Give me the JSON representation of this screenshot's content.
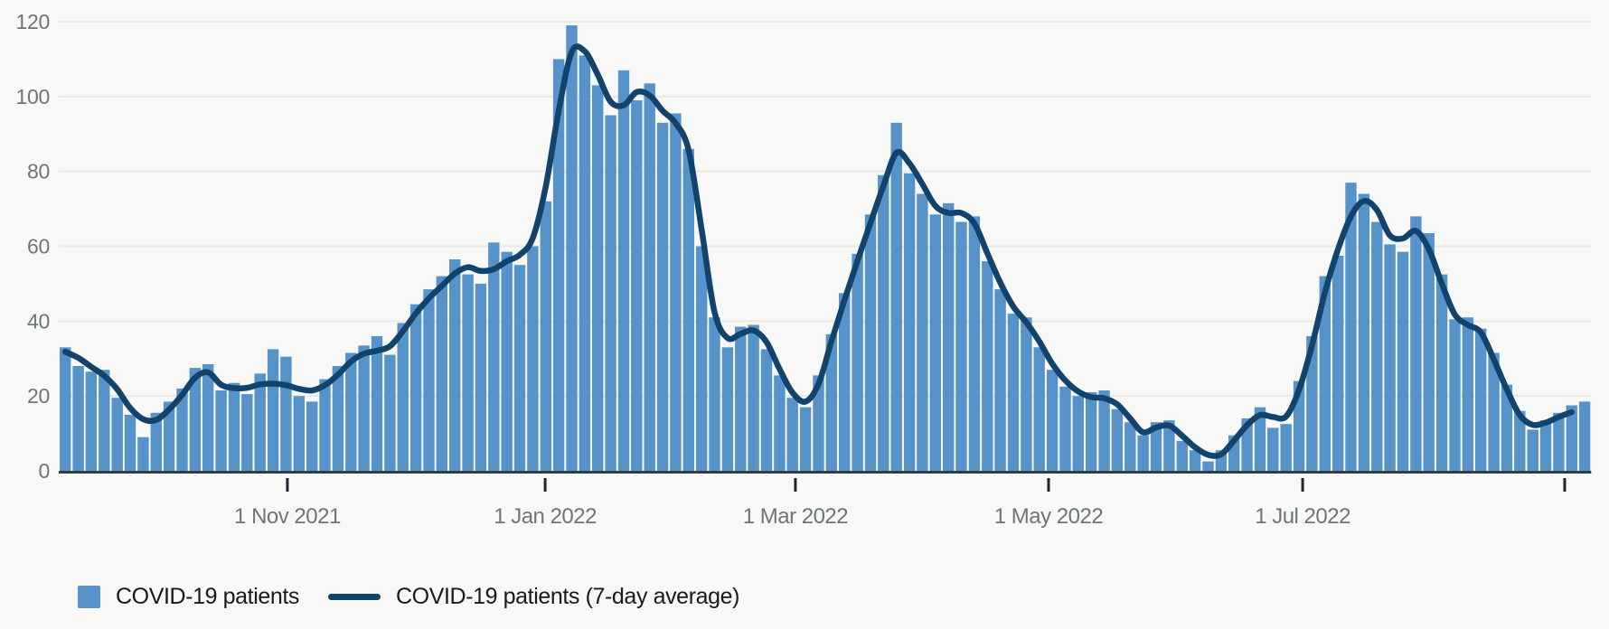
{
  "page": {
    "background": "#f8f8f7"
  },
  "chart_data": {
    "type": "bar",
    "title": "",
    "xlabel": "",
    "ylabel": "",
    "ylim": [
      0,
      120
    ],
    "y_ticks": [
      0,
      20,
      40,
      60,
      80,
      100,
      120
    ],
    "x_ticks": [
      {
        "f": 0.1492,
        "label": "1 Nov 2021"
      },
      {
        "f": 0.3174,
        "label": "1 Jan 2022"
      },
      {
        "f": 0.4807,
        "label": "1 Mar 2022"
      },
      {
        "f": 0.6459,
        "label": "1 May 2022"
      },
      {
        "f": 0.8117,
        "label": "1 Jul 2022"
      },
      {
        "f": 0.9827,
        "label": ""
      }
    ],
    "grid": true,
    "legend_position": "bottom-left",
    "colors": {
      "bar": "#5793C9",
      "line": "#12436D",
      "axis": "#343b41",
      "tick": "#21272c",
      "grid": "#e9e9e7",
      "label": "#6d7578",
      "background": "#f8f8f7",
      "legend_text": "#17191a"
    },
    "series": [
      {
        "name": "COVID-19 patients",
        "type": "bar",
        "color": "#5793C9",
        "values": [
          33,
          28,
          26.5,
          27,
          19.5,
          15,
          9,
          15.5,
          18.5,
          22,
          27.5,
          28.5,
          21.5,
          23.5,
          20.5,
          26,
          32.5,
          30.5,
          20,
          18.5,
          24.5,
          28,
          31.5,
          33.5,
          36,
          31,
          39.5,
          44.5,
          48.5,
          52,
          56.5,
          52.5,
          50,
          61,
          58.5,
          55,
          60,
          72,
          110,
          119,
          111,
          103,
          95,
          107,
          99,
          103.5,
          93,
          95.5,
          86,
          60,
          41,
          33,
          38.5,
          39,
          32.5,
          25.5,
          19.5,
          17,
          25.5,
          36.5,
          47.5,
          58,
          68.5,
          79,
          93,
          79.5,
          74,
          68.5,
          71.5,
          66.5,
          68,
          56,
          48.5,
          42,
          41,
          33,
          27,
          22.5,
          20,
          21,
          21.5,
          16.5,
          13,
          9.5,
          13,
          13.5,
          8,
          5.5,
          2.5,
          5.5,
          9.5,
          14,
          17,
          11.5,
          12.5,
          24,
          36,
          52,
          57.5,
          77,
          74,
          66.5,
          60.5,
          58.5,
          68,
          63.5,
          52.5,
          40.5,
          41,
          38,
          31.5,
          23,
          16,
          11,
          13.5,
          15.5,
          17.5,
          18.5
        ]
      },
      {
        "name": "COVID-19 patients (7-day average)",
        "type": "line",
        "color": "#12436D",
        "values": [
          31.8,
          30.2,
          27.8,
          25.4,
          21.8,
          16.8,
          13.8,
          13.6,
          16.4,
          20.3,
          24.9,
          26.3,
          23.0,
          22.1,
          22.2,
          23.1,
          23.3,
          22.9,
          21.9,
          21.5,
          22.9,
          25.7,
          29.2,
          31.3,
          32.1,
          33.3,
          37.3,
          42.1,
          46.1,
          49.4,
          52.7,
          54.4,
          53.4,
          53.9,
          56.0,
          57.7,
          62.2,
          76.0,
          96.2,
          111.9,
          112.1,
          105.9,
          98.6,
          97.7,
          101.2,
          100.3,
          96.2,
          92.9,
          85.7,
          64.5,
          42.4,
          35.5,
          36.6,
          37.5,
          34.4,
          27.2,
          20.9,
          18.5,
          23.2,
          34.6,
          45.6,
          56.1,
          66.2,
          76.1,
          85.0,
          82.2,
          76.6,
          70.8,
          68.9,
          68.9,
          66.1,
          58.2,
          50.3,
          43.9,
          39.7,
          34.6,
          28.6,
          24.2,
          21.2,
          19.7,
          19.4,
          17.8,
          14.0,
          10.3,
          11.6,
          12.1,
          9.4,
          6.3,
          4.3,
          4.4,
          8.1,
          12.2,
          14.9,
          14.4,
          14.5,
          21.6,
          33.5,
          47.7,
          59.1,
          68.0,
          72.1,
          69.7,
          62.9,
          62.1,
          64.1,
          59.2,
          50.0,
          41.8,
          39.0,
          37.0,
          29.8,
          21.8,
          14.9,
          12.3,
          12.9,
          14.4,
          15.7
        ]
      }
    ]
  },
  "legend": {
    "items": [
      {
        "label": "COVID-19 patients",
        "swatch": "square"
      },
      {
        "label": "COVID-19 patients (7-day average)",
        "swatch": "line"
      }
    ]
  }
}
